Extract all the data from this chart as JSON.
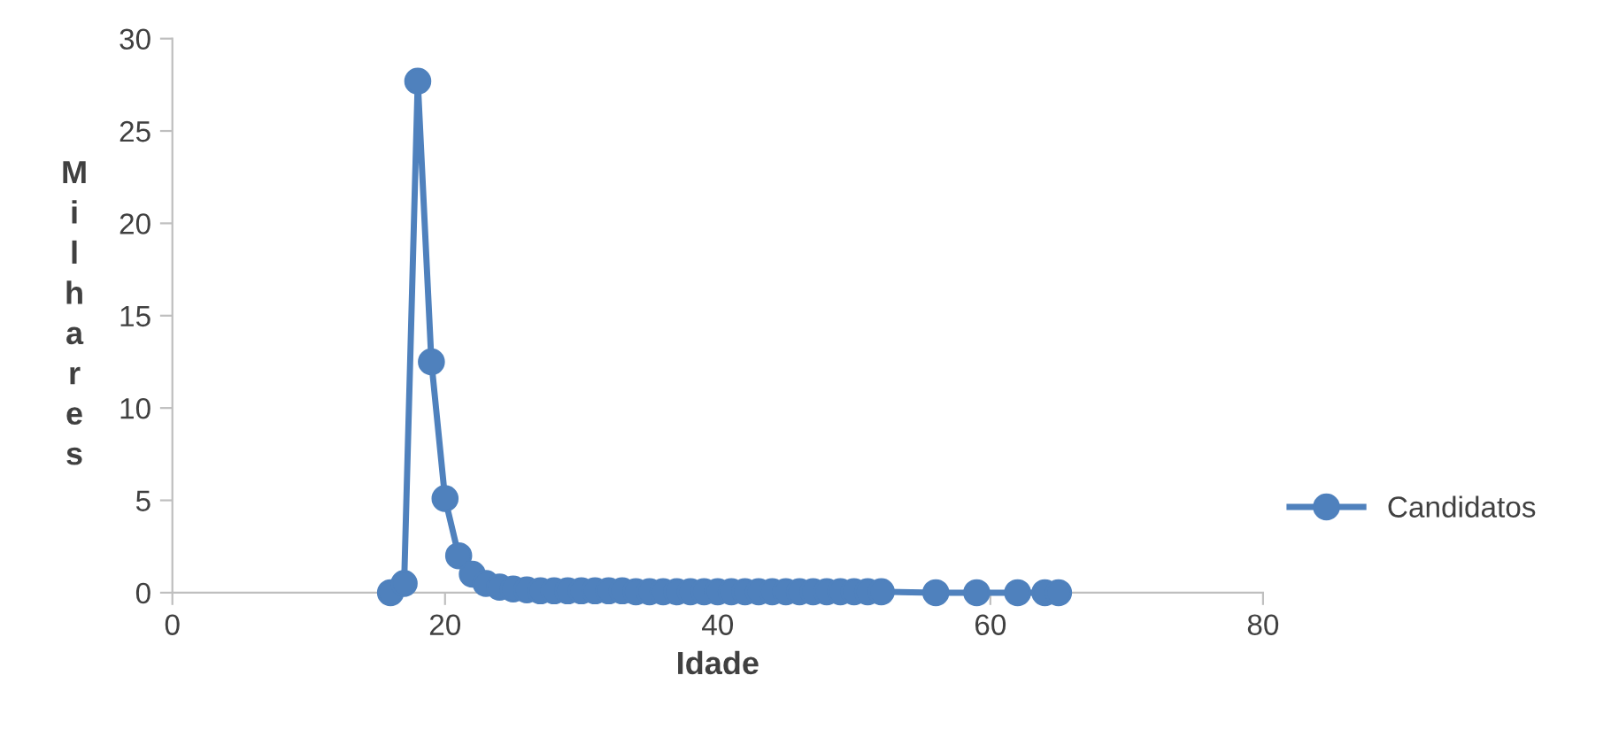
{
  "chart_data": {
    "type": "line",
    "xlabel": "Idade",
    "ylabel": "Milhares",
    "x": [
      16,
      17,
      18,
      19,
      20,
      21,
      22,
      23,
      24,
      25,
      26,
      27,
      28,
      29,
      30,
      31,
      32,
      33,
      34,
      35,
      36,
      37,
      38,
      39,
      40,
      41,
      42,
      43,
      44,
      45,
      46,
      47,
      48,
      49,
      50,
      51,
      52,
      56,
      59,
      62,
      64,
      65
    ],
    "series": [
      {
        "name": "Candidatos",
        "color": "#4f81bd",
        "values": [
          0,
          0.5,
          27.7,
          12.5,
          5.1,
          2.0,
          1.0,
          0.5,
          0.3,
          0.2,
          0.15,
          0.1,
          0.1,
          0.1,
          0.1,
          0.1,
          0.1,
          0.1,
          0.05,
          0.05,
          0.05,
          0.05,
          0.05,
          0.05,
          0.05,
          0.05,
          0.05,
          0.05,
          0.05,
          0.05,
          0.05,
          0.05,
          0.05,
          0.05,
          0.05,
          0.05,
          0.05,
          0,
          0,
          0,
          0,
          0
        ]
      }
    ],
    "xlim": [
      0,
      80
    ],
    "xticks": [
      0,
      20,
      40,
      60,
      80
    ],
    "ylim": [
      0,
      30
    ],
    "yticks": [
      0,
      5,
      10,
      15,
      20,
      25,
      30
    ],
    "marker": "circle",
    "line_style": "solid",
    "legend": "right",
    "grid": false
  }
}
